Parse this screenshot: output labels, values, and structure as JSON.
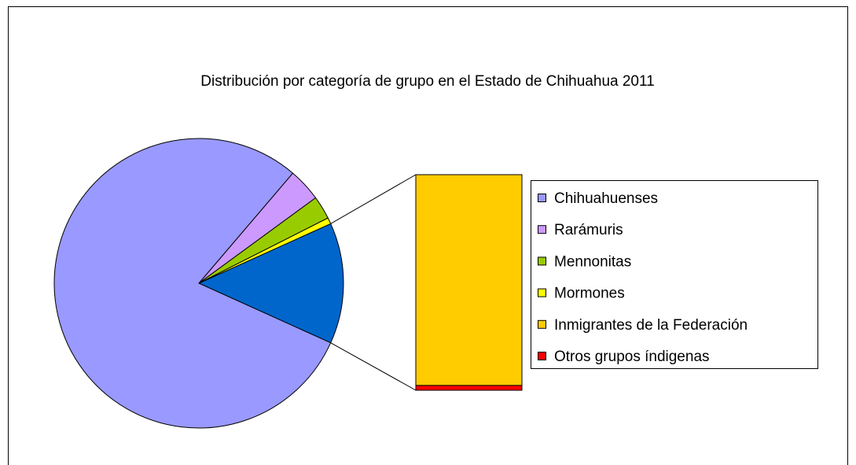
{
  "chart_data": {
    "type": "bar-of-pie",
    "title": "Distribución por categoría de grupo en el Estado de Chihuahua 2011",
    "categories": [
      "Chihuahuenses",
      "Rarámuris",
      "Mennonitas",
      "Mormones",
      "Inmigrantes de la Federación",
      "Otros grupos índigenas"
    ],
    "values": [
      79.5,
      3.7,
      2.6,
      0.7,
      13.2,
      0.3
    ],
    "colors": [
      "#9999ff",
      "#cc99ff",
      "#99cc00",
      "#ffff00",
      "#ffcc00",
      "#ff0000"
    ],
    "other_color": "#0066cc",
    "secondary_count": 2,
    "legend": "right"
  }
}
